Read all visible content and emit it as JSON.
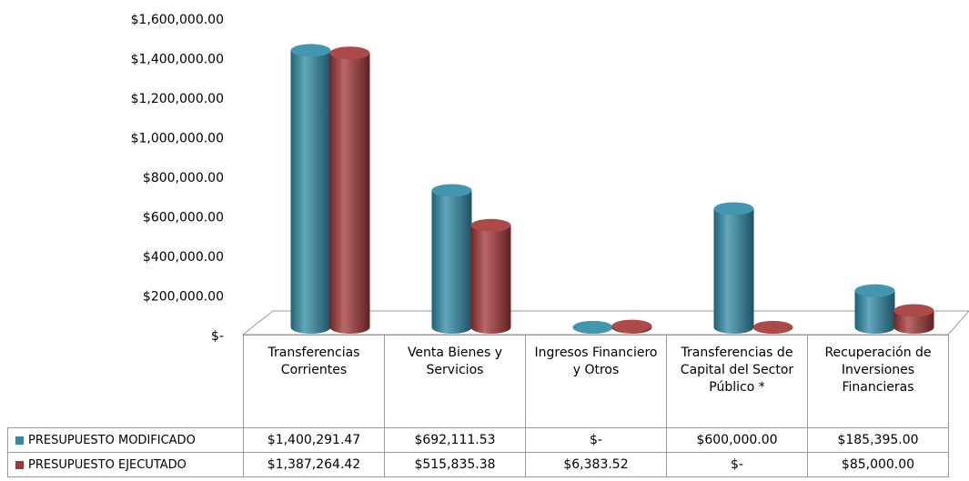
{
  "chart_data": {
    "type": "bar3d",
    "categories": [
      "Transferencias Corrientes",
      "Venta Bienes y Servicios",
      "Ingresos Financiero y Otros",
      "Transferencias de Capital del Sector Público *",
      "Recuperación de Inversiones Financieras"
    ],
    "series": [
      {
        "name": "PRESUPUESTO MODIFICADO",
        "color": "#2e8aa6",
        "values": [
          1400291.47,
          692111.53,
          0,
          600000,
          185395
        ],
        "value_labels": [
          "$1,400,291.47",
          "$692,111.53",
          "$-",
          "$600,000.00",
          "$185,395.00"
        ]
      },
      {
        "name": "PRESUPUESTO EJECUTADO",
        "color": "#a33535",
        "values": [
          1387264.42,
          515835.38,
          6383.52,
          0,
          85000
        ],
        "value_labels": [
          "$1,387,264.42",
          "$515,835.38",
          "$6,383.52",
          "$-",
          "$85,000.00"
        ]
      }
    ],
    "ylim": [
      0,
      1600000
    ],
    "yticks": [
      {
        "value": 0,
        "label": "$-"
      },
      {
        "value": 200000,
        "label": "$200,000.00"
      },
      {
        "value": 400000,
        "label": "$400,000.00"
      },
      {
        "value": 600000,
        "label": "$600,000.00"
      },
      {
        "value": 800000,
        "label": "$800,000.00"
      },
      {
        "value": 1000000,
        "label": "$1,000,000.00"
      },
      {
        "value": 1200000,
        "label": "$1,200,000.00"
      },
      {
        "value": 1400000,
        "label": "$1,400,000.00"
      },
      {
        "value": 1600000,
        "label": "$1,600,000.00"
      }
    ]
  }
}
